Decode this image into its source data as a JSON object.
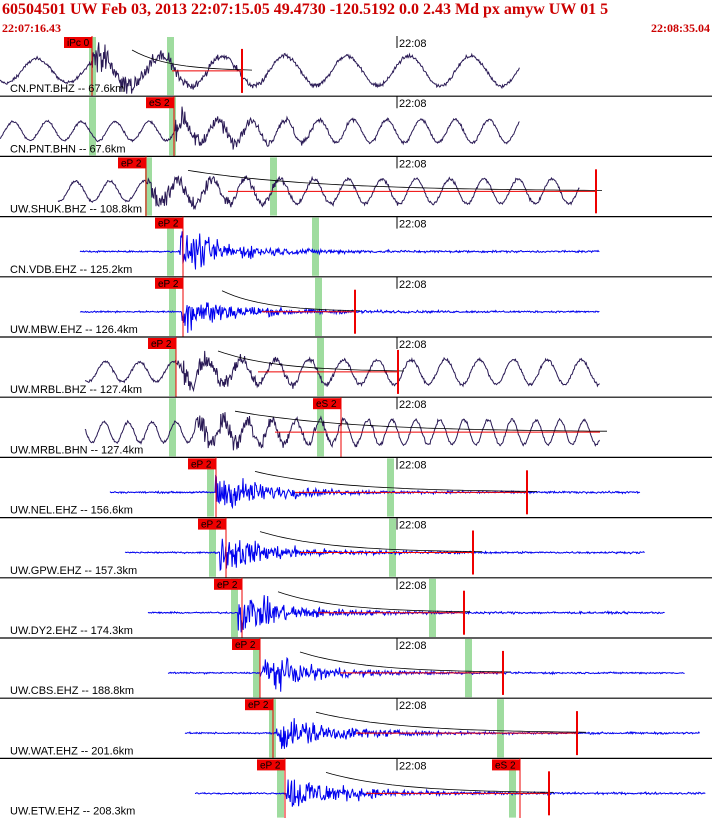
{
  "header": {
    "title": "60504501 UW Feb 03, 2013 22:07:15.05    49.4730 -120.5192  0.0 2.43 Md px amyw UW 01   5",
    "start_time": "22:07:16.43",
    "end_time": "22:08:35.04"
  },
  "colors": {
    "header_text": "#cc0000",
    "broadband_trace": "#2a1a55",
    "short_period_trace": "#0000ee",
    "pick_marker": "#ee0000",
    "window_band": "#9fdc9f",
    "coda_curve": "#000000"
  },
  "time_label": "22:08",
  "traces": [
    {
      "label": "CN.PNT.BHZ -- 67.6km",
      "kind": "bb",
      "start": 0,
      "end": 520,
      "onset": 92,
      "amp": 0.9,
      "pick": {
        "label": "iPc 0",
        "x": 64
      },
      "secondary_x": 242,
      "green": [
        92,
        170
      ],
      "coda": true,
      "wave": "long"
    },
    {
      "label": "CN.PNT.BHN -- 67.6km",
      "kind": "bb",
      "start": 0,
      "end": 520,
      "onset": 175,
      "amp": 0.7,
      "pick": {
        "label": "eS 2",
        "x": 146
      },
      "secondary_x": null,
      "green": [
        92,
        172
      ],
      "coda": false,
      "wave": "mid"
    },
    {
      "label": "UW.SHUK.BHZ -- 108.8km",
      "kind": "bb",
      "start": 58,
      "end": 580,
      "onset": 148,
      "amp": 0.75,
      "pick": {
        "label": "eP 2",
        "x": 118
      },
      "secondary_x": 596,
      "green": [
        148,
        273
      ],
      "coda": true,
      "wave": "mid"
    },
    {
      "label": "CN.VDB.EHZ -- 125.2km",
      "kind": "sp",
      "start": 80,
      "end": 600,
      "onset": 180,
      "amp": 0.95,
      "pick": {
        "label": "eP 2",
        "x": 155
      },
      "secondary_x": null,
      "green": [
        170,
        315
      ],
      "coda": false,
      "wave": "sp"
    },
    {
      "label": "UW.MBW.EHZ -- 126.4km",
      "kind": "sp",
      "start": 80,
      "end": 600,
      "onset": 182,
      "amp": 0.9,
      "pick": {
        "label": "eP 2",
        "x": 155
      },
      "secondary_x": 355,
      "green": [
        172,
        318
      ],
      "coda": true,
      "wave": "sp"
    },
    {
      "label": "UW.MRBL.BHZ -- 127.4km",
      "kind": "bb",
      "start": 85,
      "end": 600,
      "onset": 178,
      "amp": 0.75,
      "pick": {
        "label": "eP 2",
        "x": 148
      },
      "secondary_x": 398,
      "green": [
        172,
        320
      ],
      "coda": true,
      "wave": "mid"
    },
    {
      "label": "UW.MRBL.BHN -- 127.4km",
      "kind": "bb",
      "start": 85,
      "end": 600,
      "onset": 195,
      "amp": 0.75,
      "pick": {
        "label": "eS 2",
        "x": 313
      },
      "secondary_x": null,
      "green": [
        172,
        320
      ],
      "coda": true,
      "wave": "short"
    },
    {
      "label": "UW.NEL.EHZ -- 156.6km",
      "kind": "sp",
      "start": 110,
      "end": 640,
      "onset": 215,
      "amp": 0.95,
      "pick": {
        "label": "eP 2",
        "x": 188
      },
      "secondary_x": 527,
      "green": [
        210,
        390
      ],
      "coda": true,
      "wave": "sp"
    },
    {
      "label": "UW.GPW.EHZ -- 157.3km",
      "kind": "sp",
      "start": 125,
      "end": 645,
      "onset": 220,
      "amp": 0.9,
      "pick": {
        "label": "eP 2",
        "x": 198
      },
      "secondary_x": 473,
      "green": [
        212,
        392
      ],
      "coda": true,
      "wave": "sp"
    },
    {
      "label": "UW.DY2.EHZ -- 174.3km",
      "kind": "sp",
      "start": 148,
      "end": 665,
      "onset": 238,
      "amp": 0.95,
      "pick": {
        "label": "eP 2",
        "x": 214
      },
      "secondary_x": 464,
      "green": [
        234,
        432
      ],
      "coda": true,
      "wave": "sp"
    },
    {
      "label": "UW.CBS.EHZ -- 188.8km",
      "kind": "sp",
      "start": 168,
      "end": 685,
      "onset": 260,
      "amp": 0.85,
      "pick": {
        "label": "eP 2",
        "x": 232
      },
      "secondary_x": 503,
      "green": [
        256,
        468
      ],
      "coda": true,
      "wave": "sp"
    },
    {
      "label": "UW.WAT.EHZ -- 201.6km",
      "kind": "sp",
      "start": 185,
      "end": 700,
      "onset": 276,
      "amp": 0.95,
      "pick": {
        "label": "eP 2",
        "x": 245
      },
      "secondary_x": 577,
      "green": [
        272,
        500
      ],
      "coda": true,
      "wave": "sp"
    },
    {
      "label": "UW.ETW.EHZ -- 208.3km",
      "kind": "sp",
      "start": 195,
      "end": 706,
      "onset": 286,
      "amp": 0.95,
      "pick": {
        "label": "eP 2",
        "x": 257
      },
      "secondary_x": 549,
      "green": [
        280,
        512
      ],
      "coda": true,
      "wave": "sp",
      "pick2": {
        "label": "eS 2",
        "x": 492
      }
    }
  ]
}
